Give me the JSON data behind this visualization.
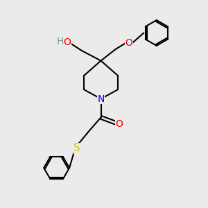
{
  "bg_color": "#ebebeb",
  "atom_colors": {
    "C": "#000000",
    "N": "#0000ee",
    "O": "#ee0000",
    "S": "#cccc00",
    "H": "#7a9a9a"
  },
  "bond_color": "#000000",
  "bond_width": 1.5,
  "fig_size": [
    3.0,
    3.0
  ],
  "dpi": 100
}
